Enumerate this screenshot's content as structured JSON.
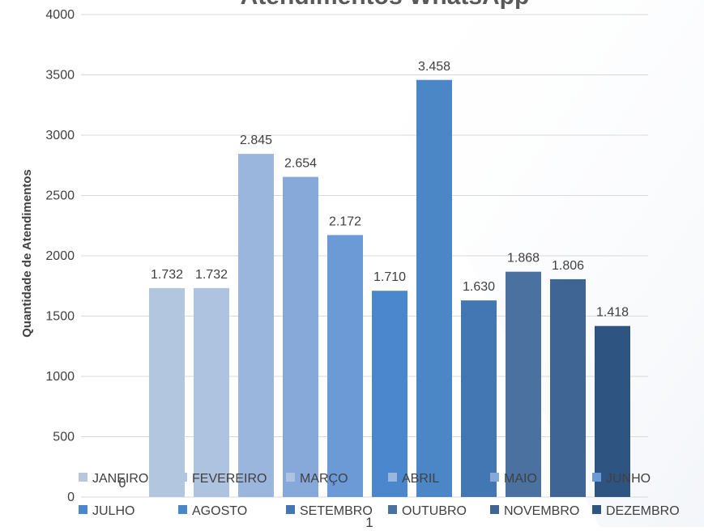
{
  "chart_data": {
    "type": "bar",
    "title": "Atendimentos WhatsApp",
    "xlabel": "",
    "ylabel": "Quantidade de Atendimentos",
    "ylim": [
      0,
      4000
    ],
    "yticks": [
      0,
      500,
      1000,
      1500,
      2000,
      2500,
      3000,
      3500,
      4000
    ],
    "x_category_label": "1",
    "grid": true,
    "legend_placement": "bottom",
    "series": [
      {
        "name": "JANEIRO",
        "value": 0,
        "label": "0",
        "color": "#b8c7dc"
      },
      {
        "name": "FEVEREIRO",
        "value": 1732,
        "label": "1.732",
        "color": "#b3c6df"
      },
      {
        "name": "MARÇO",
        "value": 1732,
        "label": "1.732",
        "color": "#adc3e0"
      },
      {
        "name": "ABRIL",
        "value": 2845,
        "label": "2.845",
        "color": "#9ab6dd"
      },
      {
        "name": "MAIO",
        "value": 2654,
        "label": "2.654",
        "color": "#86a9da"
      },
      {
        "name": "JUNHO",
        "value": 2172,
        "label": "2.172",
        "color": "#6c9ad6"
      },
      {
        "name": "JULHO",
        "value": 1710,
        "label": "1.710",
        "color": "#4a87cc"
      },
      {
        "name": "AGOSTO",
        "value": 3458,
        "label": "3.458",
        "color": "#4b86c6"
      },
      {
        "name": "SETEMBRO",
        "value": 1630,
        "label": "1.630",
        "color": "#4377b3"
      },
      {
        "name": "OUTUBRO",
        "value": 1868,
        "label": "1.868",
        "color": "#4a71a0"
      },
      {
        "name": "NOVEMBRO",
        "value": 1806,
        "label": "1.806",
        "color": "#3e6593"
      },
      {
        "name": "DEZEMBRO",
        "value": 1418,
        "label": "1.418",
        "color": "#2e5482"
      }
    ]
  }
}
